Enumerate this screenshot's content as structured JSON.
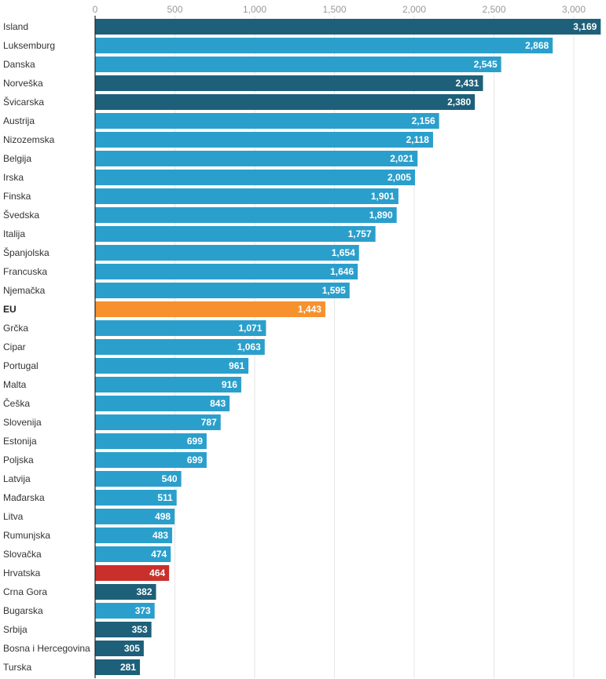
{
  "colors": {
    "eu_member": "#2b9fcc",
    "non_eu": "#1e6079",
    "eu_average": "#f7912e",
    "croatia": "#c9302c",
    "grid": "#e5e5e5",
    "axis": "#222222"
  },
  "chart_data": {
    "type": "bar",
    "orientation": "horizontal",
    "xlim": [
      0,
      3169
    ],
    "xticks": [
      0,
      500,
      1000,
      1500,
      2000,
      2500,
      3000
    ],
    "xtick_labels": [
      "0",
      "500",
      "1,000",
      "1,500",
      "2,000",
      "2,500",
      "3,000"
    ],
    "grid": true,
    "categories": [
      "Island",
      "Luksemburg",
      "Danska",
      "Norveška",
      "Švicarska",
      "Austrija",
      "Nizozemska",
      "Belgija",
      "Irska",
      "Finska",
      "Švedska",
      "Italija",
      "Španjolska",
      "Francuska",
      "Njemačka",
      "EU",
      "Grčka",
      "Cipar",
      "Portugal",
      "Malta",
      "Češka",
      "Slovenija",
      "Estonija",
      "Poljska",
      "Latvija",
      "Mađarska",
      "Litva",
      "Rumunjska",
      "Slovačka",
      "Hrvatska",
      "Crna Gora",
      "Bugarska",
      "Srbija",
      "Bosna i Hercegovina",
      "Turska"
    ],
    "values": [
      3169,
      2868,
      2545,
      2431,
      2380,
      2156,
      2118,
      2021,
      2005,
      1901,
      1890,
      1757,
      1654,
      1646,
      1595,
      1443,
      1071,
      1063,
      961,
      916,
      843,
      787,
      699,
      699,
      540,
      511,
      498,
      483,
      474,
      464,
      382,
      373,
      353,
      305,
      281
    ],
    "value_labels": [
      "3,169",
      "2,868",
      "2,545",
      "2,431",
      "2,380",
      "2,156",
      "2,118",
      "2,021",
      "2,005",
      "1,901",
      "1,890",
      "1,757",
      "1,654",
      "1,646",
      "1,595",
      "1,443",
      "1,071",
      "1,063",
      "961",
      "916",
      "843",
      "787",
      "699",
      "699",
      "540",
      "511",
      "498",
      "483",
      "474",
      "464",
      "382",
      "373",
      "353",
      "305",
      "281"
    ],
    "groups": [
      "non_eu",
      "eu_member",
      "eu_member",
      "non_eu",
      "non_eu",
      "eu_member",
      "eu_member",
      "eu_member",
      "eu_member",
      "eu_member",
      "eu_member",
      "eu_member",
      "eu_member",
      "eu_member",
      "eu_member",
      "eu_average",
      "eu_member",
      "eu_member",
      "eu_member",
      "eu_member",
      "eu_member",
      "eu_member",
      "eu_member",
      "eu_member",
      "eu_member",
      "eu_member",
      "eu_member",
      "eu_member",
      "eu_member",
      "croatia",
      "non_eu",
      "eu_member",
      "non_eu",
      "non_eu",
      "non_eu"
    ],
    "title": "",
    "xlabel": "",
    "ylabel": ""
  }
}
